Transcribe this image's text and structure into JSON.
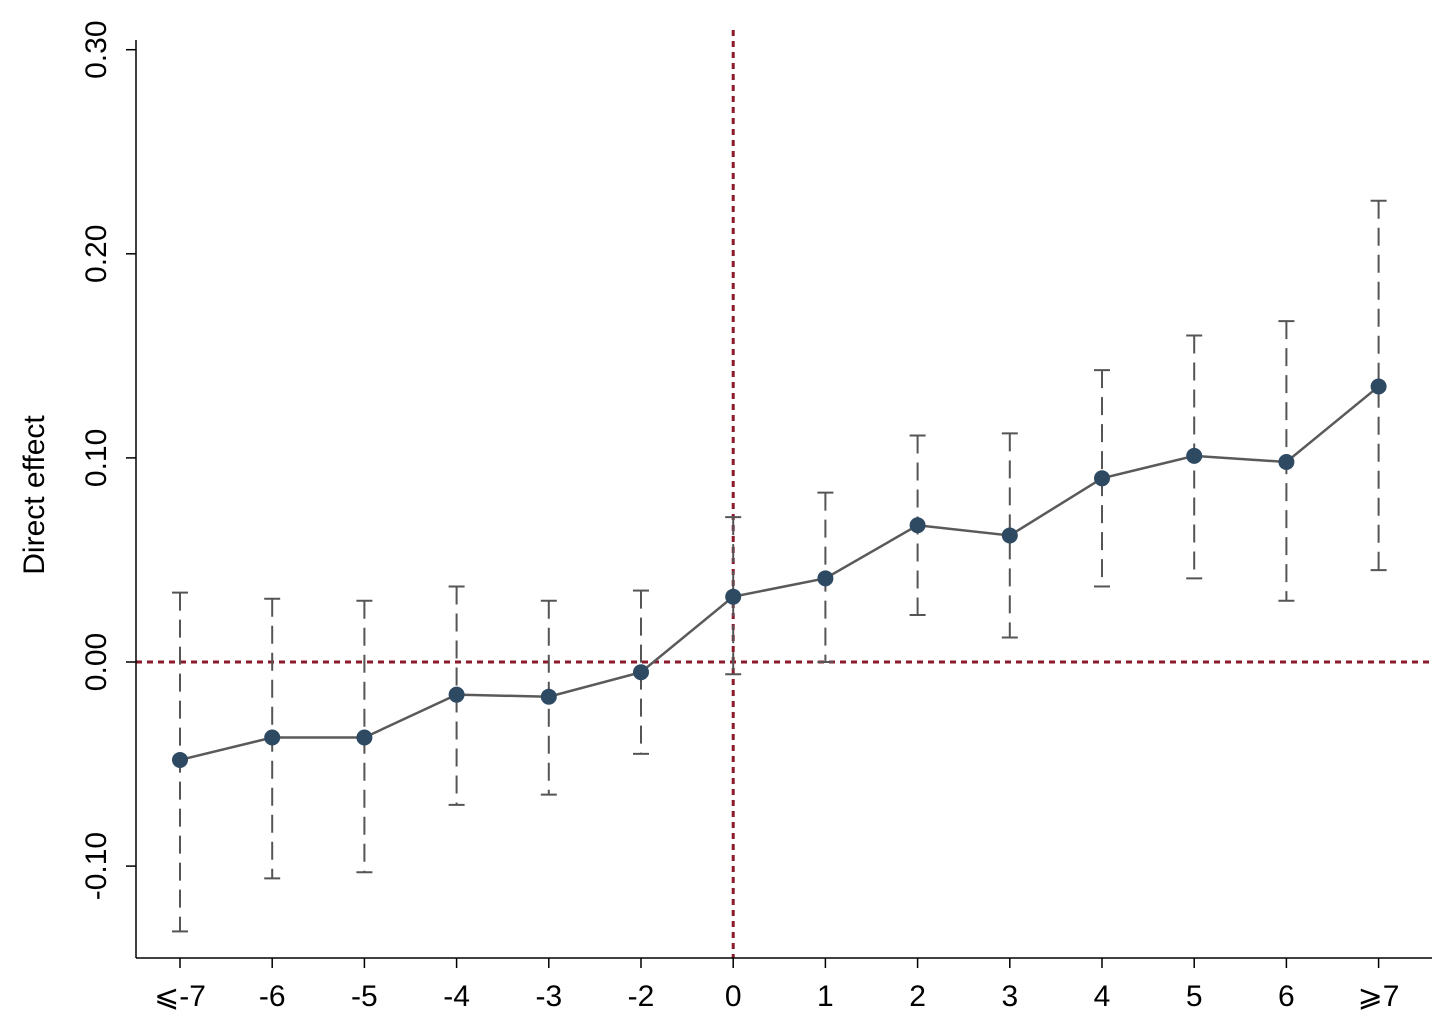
{
  "chart_data": {
    "type": "line",
    "categories": [
      "⩽-7",
      "-6",
      "-5",
      "-4",
      "-3",
      "-2",
      "0",
      "1",
      "2",
      "3",
      "4",
      "5",
      "6",
      "⩾7"
    ],
    "series": [
      {
        "values": [
          -0.048,
          -0.037,
          -0.037,
          -0.016,
          -0.017,
          -0.005,
          0.032,
          0.041,
          0.067,
          0.062,
          0.09,
          0.101,
          0.098,
          0.135
        ],
        "ci_lower": [
          -0.132,
          -0.106,
          -0.103,
          -0.07,
          -0.065,
          -0.045,
          -0.006,
          0.0,
          0.023,
          0.012,
          0.037,
          0.041,
          0.03,
          0.045
        ],
        "ci_upper": [
          0.034,
          0.031,
          0.03,
          0.037,
          0.03,
          0.035,
          0.071,
          0.083,
          0.111,
          0.112,
          0.143,
          0.16,
          0.167,
          0.226
        ]
      }
    ],
    "ylabel": "Direct effect",
    "xlabel": "",
    "ylim": [
      -0.145,
      0.31
    ],
    "yticks": [
      -0.1,
      0.0,
      0.1,
      0.2,
      0.3
    ],
    "ytick_labels": [
      "-0.10",
      "0.00",
      "0.10",
      "0.20",
      "0.30"
    ],
    "reference_lines": {
      "horizontal_y": 0.0,
      "vertical_category": "0"
    },
    "grid": false,
    "legend": "none",
    "colors": {
      "marker": "#2e4a63",
      "line": "#5a5a5a",
      "ci": "#555555",
      "reference": "#8b1a2b"
    }
  }
}
